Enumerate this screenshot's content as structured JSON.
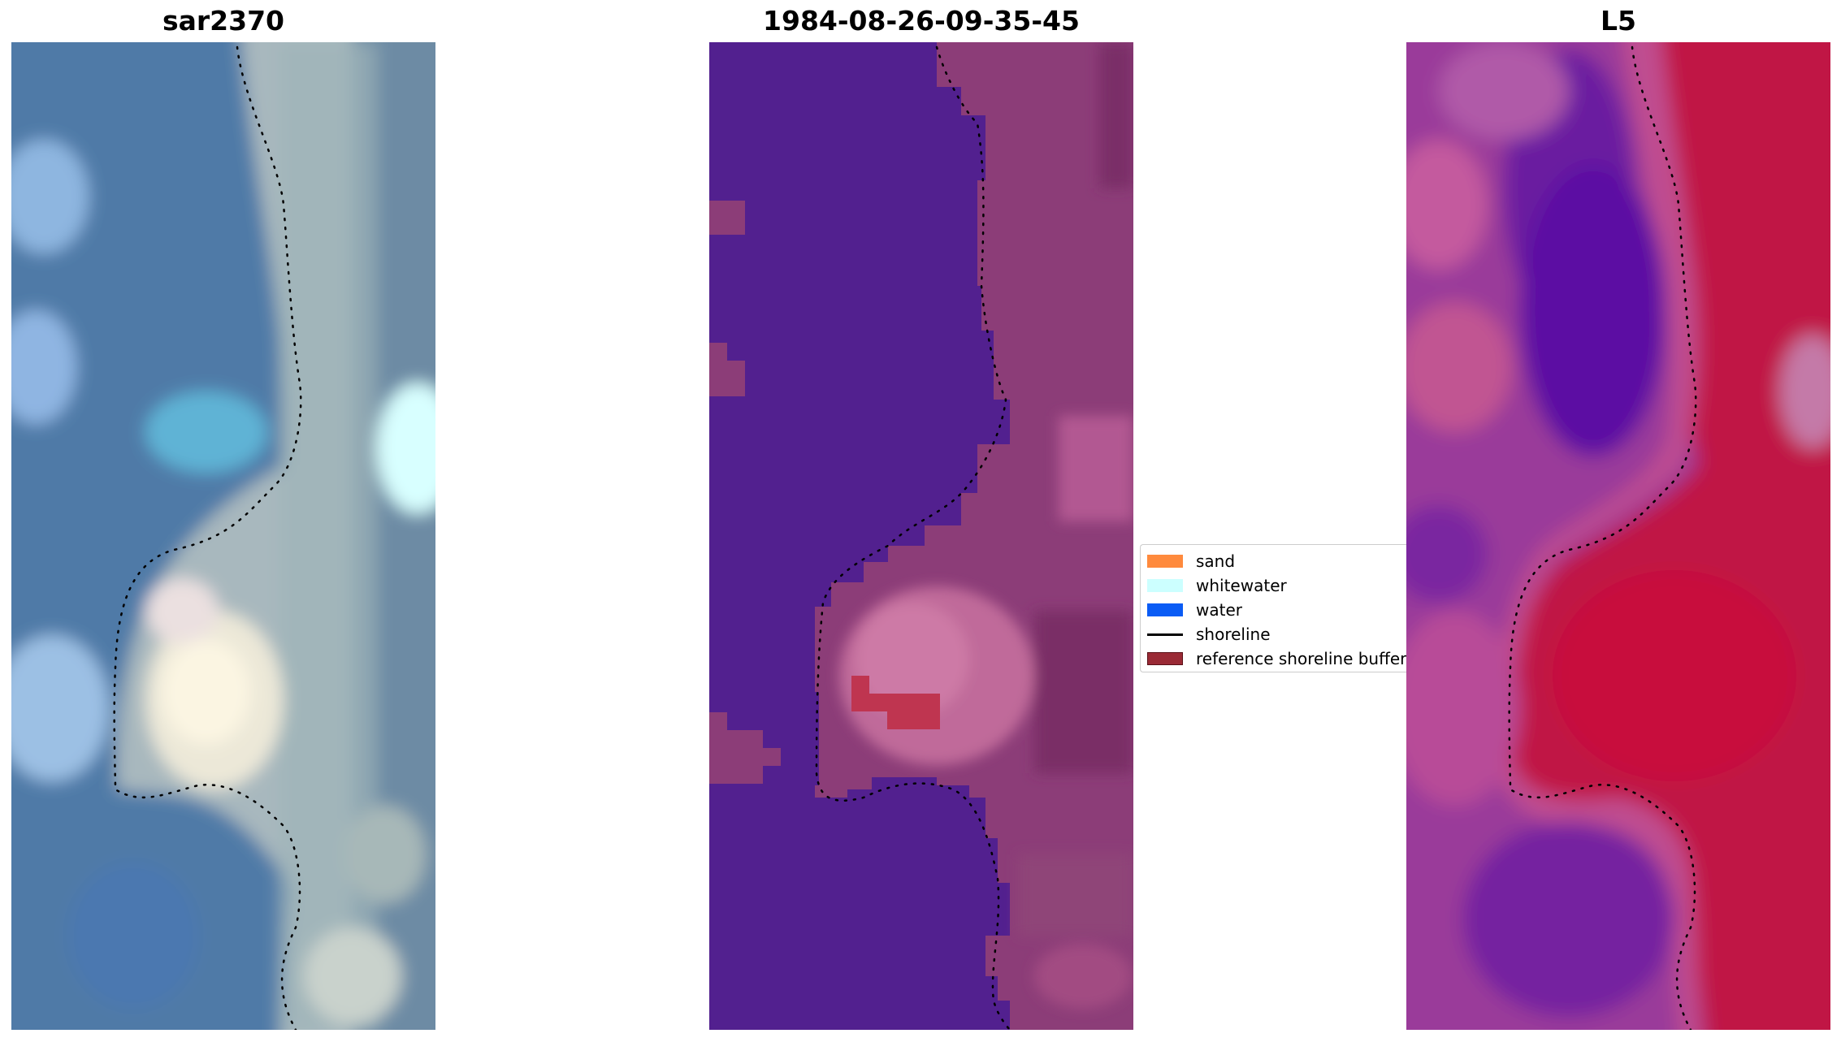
{
  "panels": {
    "left": {
      "title": "sar2370"
    },
    "middle": {
      "title": "1984-08-26-09-35-45"
    },
    "right": {
      "title": "L5"
    }
  },
  "legend": {
    "items": [
      {
        "label": "sand",
        "kind": "patch",
        "color": "#ff8a3d"
      },
      {
        "label": "whitewater",
        "kind": "patch",
        "color": "#ccffff"
      },
      {
        "label": "water",
        "kind": "patch",
        "color": "#0a5cf5"
      },
      {
        "label": "shoreline",
        "kind": "line",
        "color": "#000000"
      },
      {
        "label": "reference shoreline buffer",
        "kind": "patch",
        "color": "#9a2a35",
        "edge": "#5a1018"
      }
    ]
  },
  "colors": {
    "rgb_water": "#5b82a8",
    "rgb_land": "#a9b8bd",
    "classified_water": "#52208f",
    "classified_land": "#8c3d78",
    "classified_buffer": "#bf3550",
    "index_water": "#7a1fa0",
    "index_land": "#c0143e"
  }
}
